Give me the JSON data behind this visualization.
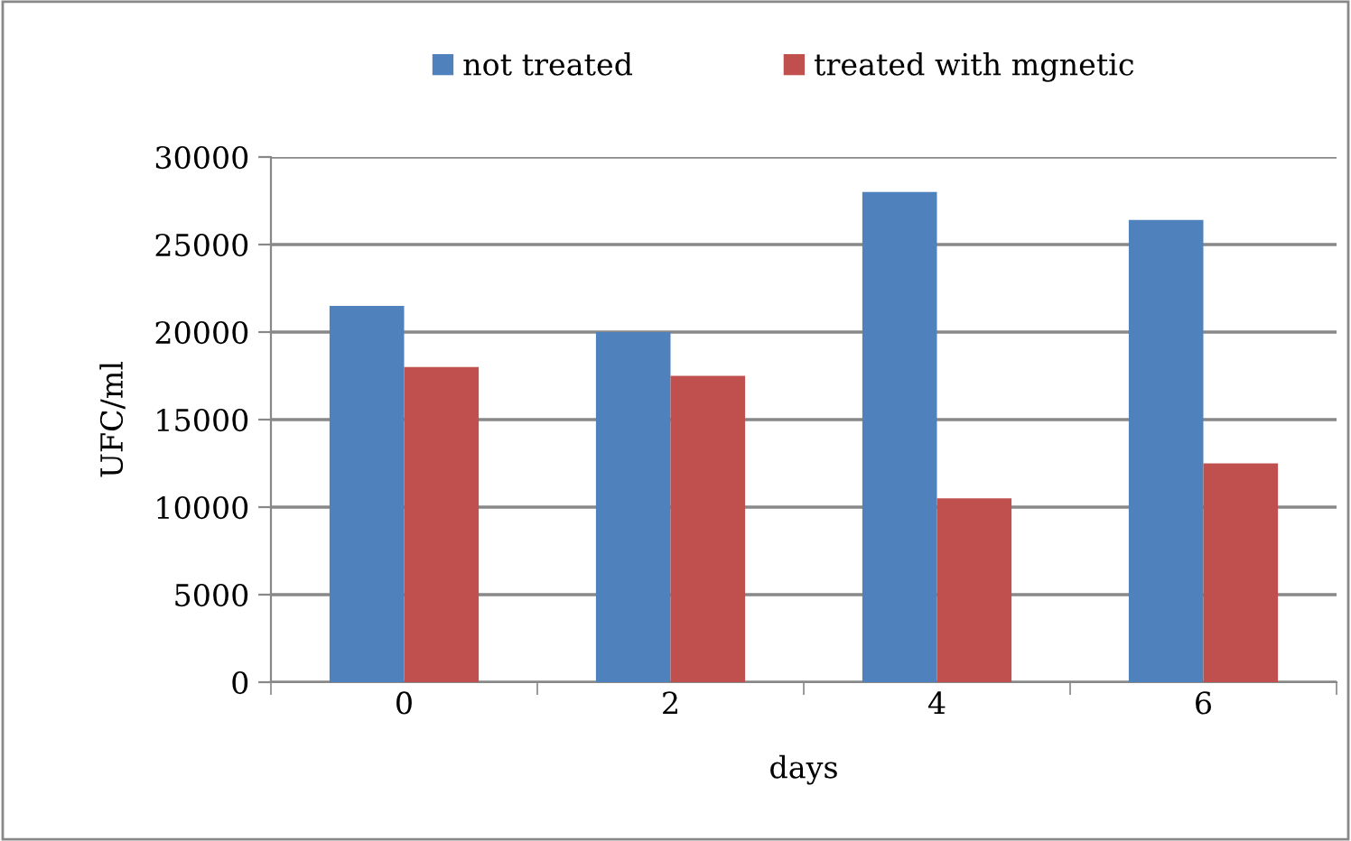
{
  "chart_data": {
    "type": "bar",
    "xlabel": "days",
    "ylabel": "UFC/ml",
    "categories": [
      "0",
      "2",
      "4",
      "6"
    ],
    "series": [
      {
        "name": "not treated",
        "color": "#4f81bd",
        "values": [
          21500,
          20000,
          28000,
          26400
        ]
      },
      {
        "name": "treated with mgnetic",
        "color": "#c0504d",
        "values": [
          18000,
          17500,
          10500,
          12500
        ]
      }
    ],
    "ylim": [
      0,
      30000
    ],
    "yticks": [
      0,
      5000,
      10000,
      15000,
      20000,
      25000,
      30000
    ],
    "grid": "y",
    "legend": "top"
  }
}
